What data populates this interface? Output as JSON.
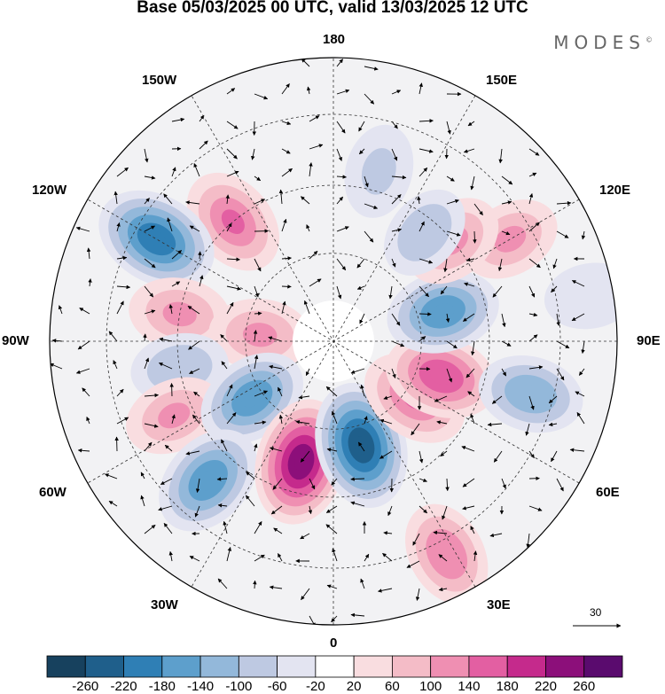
{
  "title": "Base 05/03/2025 00 UTC, valid 13/03/2025 12 UTC",
  "brand": "MODES",
  "brand_mark": "©",
  "longitude_labels": {
    "top": "180",
    "bottom": "0",
    "left": "90W",
    "right": "90E",
    "upper_left_1": "150W",
    "upper_left_2": "120W",
    "upper_right_1": "150E",
    "upper_right_2": "120E",
    "lower_left_1": "60W",
    "lower_left_2": "30W",
    "lower_right_1": "60E",
    "lower_right_2": "30E"
  },
  "reference_vector_label": "30",
  "colorbar": {
    "labels": [
      "-260",
      "-220",
      "-180",
      "-140",
      "-100",
      "-60",
      "-20",
      "20",
      "60",
      "100",
      "140",
      "180",
      "220",
      "260"
    ],
    "colors": [
      "#17415e",
      "#1f5f8b",
      "#2f7fb5",
      "#5d9fcc",
      "#93b8da",
      "#bec9e2",
      "#e3e4f1",
      "#ffffff",
      "#f9dde0",
      "#f4bcc7",
      "#ef8fb2",
      "#e35fa2",
      "#c52a8c",
      "#8c0f7a",
      "#5a0b6e"
    ]
  },
  "map": {
    "projection": "north-polar-stereographic",
    "anomalies": [
      {
        "lon": -140,
        "r": 0.55,
        "value": 150
      },
      {
        "lon": -120,
        "r": 0.72,
        "value": -220
      },
      {
        "lon": -100,
        "r": 0.55,
        "value": 110
      },
      {
        "lon": -95,
        "r": 0.26,
        "value": 110
      },
      {
        "lon": -80,
        "r": 0.55,
        "value": -90
      },
      {
        "lon": -65,
        "r": 0.62,
        "value": 100
      },
      {
        "lon": -55,
        "r": 0.35,
        "value": -160
      },
      {
        "lon": -42,
        "r": 0.66,
        "value": -180
      },
      {
        "lon": -15,
        "r": 0.44,
        "value": 240
      },
      {
        "lon": 15,
        "r": 0.38,
        "value": -240
      },
      {
        "lon": 28,
        "r": 0.85,
        "value": 130
      },
      {
        "lon": 55,
        "r": 0.35,
        "value": 150
      },
      {
        "lon": 72,
        "r": 0.4,
        "value": 170
      },
      {
        "lon": 75,
        "r": 0.72,
        "value": -130
      },
      {
        "lon": 105,
        "r": 0.4,
        "value": -170
      },
      {
        "lon": 120,
        "r": 0.72,
        "value": 100
      },
      {
        "lon": 130,
        "r": 0.55,
        "value": 110
      },
      {
        "lon": 140,
        "r": 0.5,
        "value": -80
      },
      {
        "lon": 165,
        "r": 0.62,
        "value": -70
      },
      {
        "lon": 100,
        "r": 0.92,
        "value": -60
      }
    ]
  }
}
